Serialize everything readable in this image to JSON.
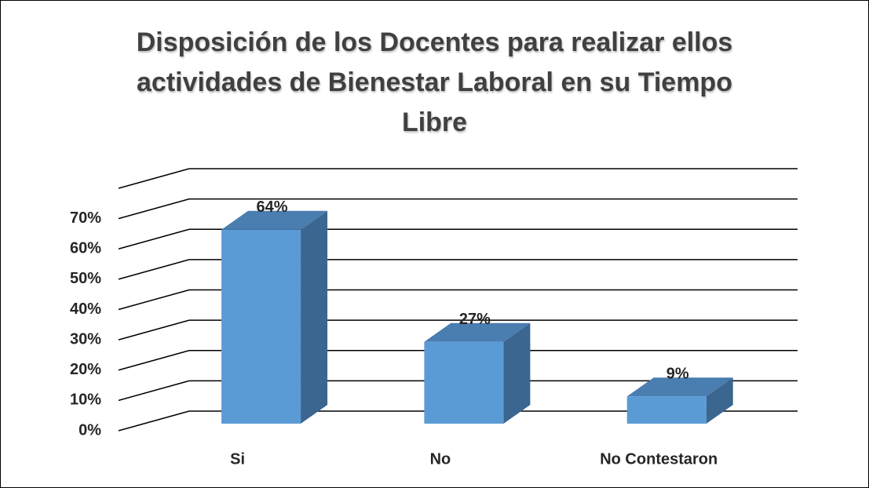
{
  "chart_data": {
    "type": "bar3d",
    "title": "Disposición de los Docentes para realizar ellos actividades de Bienestar Laboral en su Tiempo Libre",
    "categories": [
      "Si",
      "No",
      "No Contestaron"
    ],
    "values": [
      64,
      27,
      9
    ],
    "value_labels": [
      "64%",
      "27%",
      "9%"
    ],
    "color": "#5b9bd5",
    "ylim": [
      0,
      80
    ],
    "yticks": [
      {
        "value": 0,
        "label": "0%"
      },
      {
        "value": 10,
        "label": "10%"
      },
      {
        "value": 20,
        "label": "20%"
      },
      {
        "value": 30,
        "label": "30%"
      },
      {
        "value": 40,
        "label": "40%"
      },
      {
        "value": 50,
        "label": "50%"
      },
      {
        "value": 60,
        "label": "60%"
      },
      {
        "value": 70,
        "label": "70%"
      }
    ],
    "grid": true
  }
}
